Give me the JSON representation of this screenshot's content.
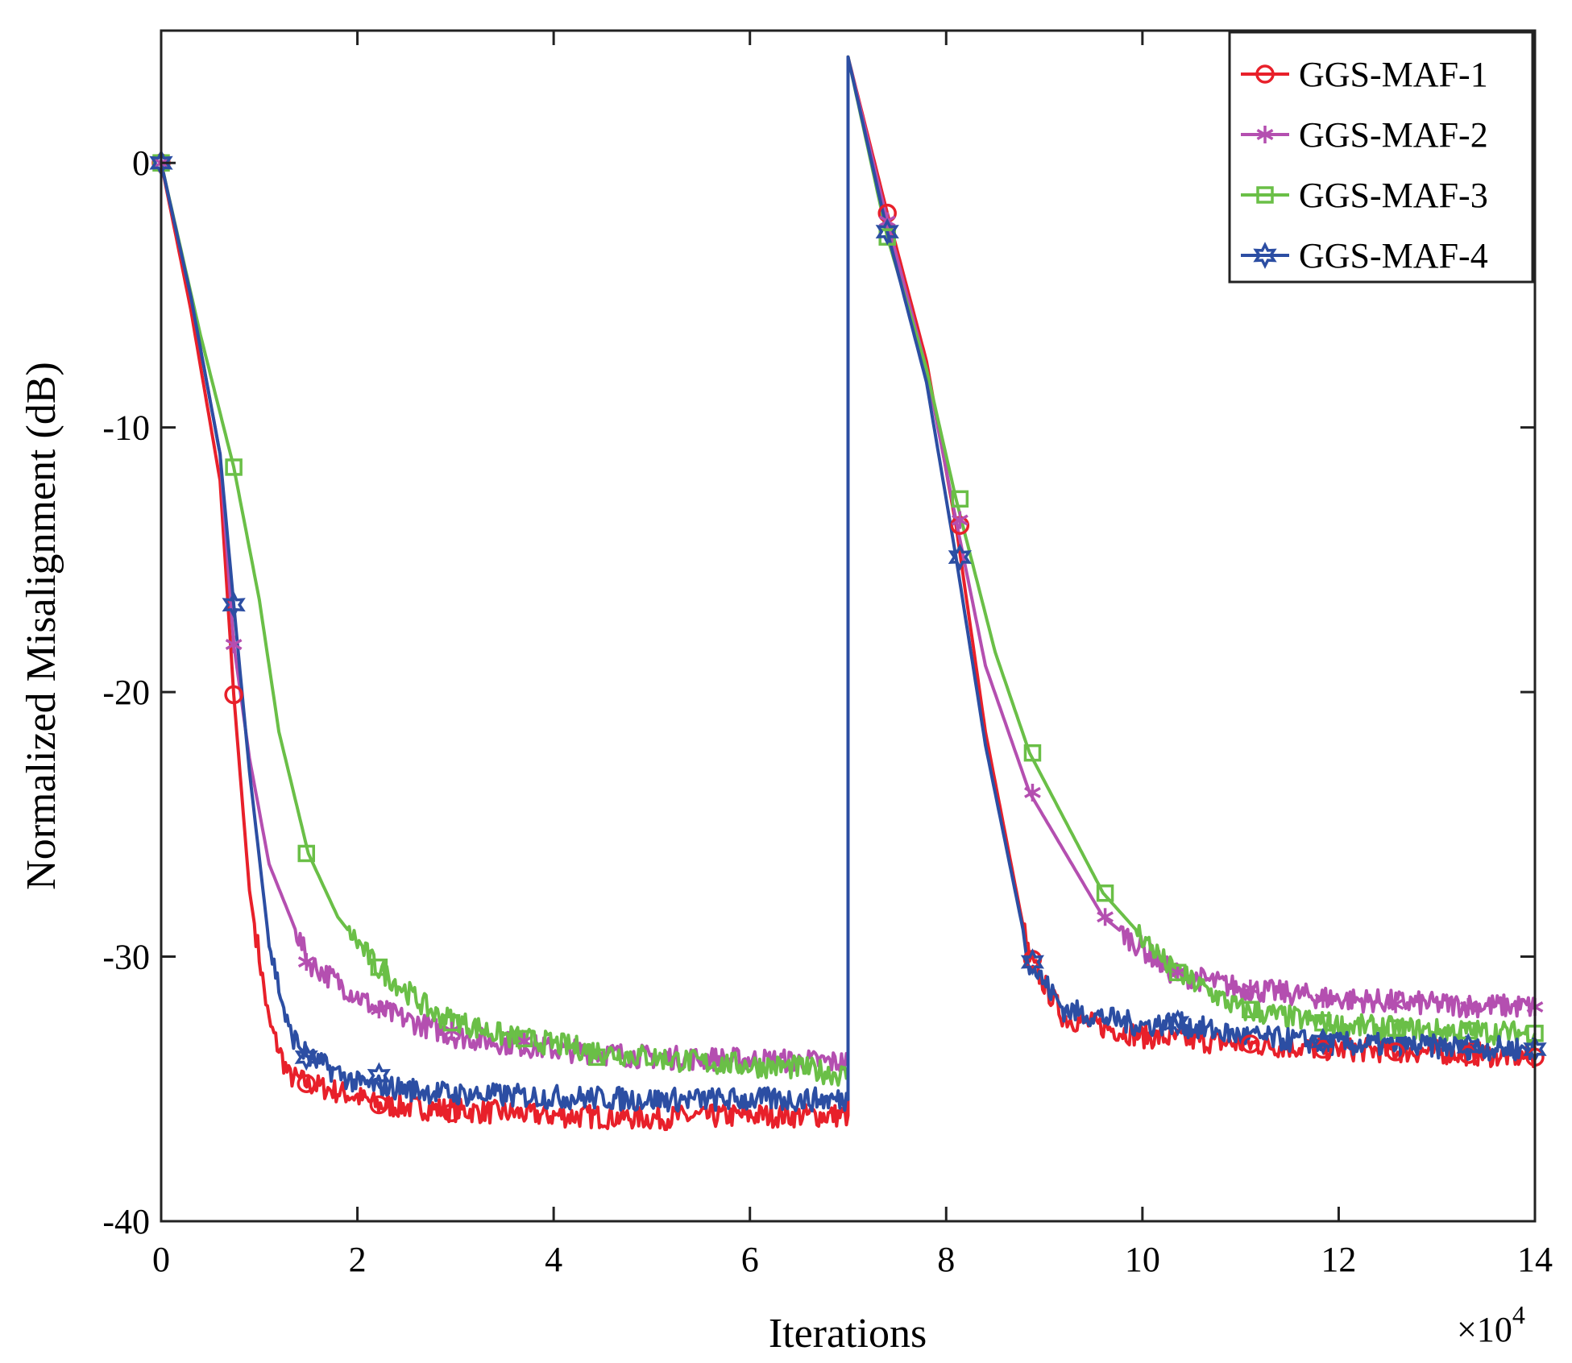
{
  "chart_data": {
    "type": "line",
    "xlabel": "Iterations",
    "ylabel": "Normalized Misalignment (dB)",
    "x_multiplier": {
      "base": "×10",
      "exponent": "4"
    },
    "xlim": [
      0,
      14
    ],
    "ylim": [
      -40,
      5
    ],
    "x_ticks": [
      0,
      2,
      4,
      6,
      8,
      10,
      12,
      14
    ],
    "y_ticks": [
      0,
      -10,
      -20,
      -30,
      -40
    ],
    "x_tick_labels": [
      "0",
      "2",
      "4",
      "6",
      "8",
      "10",
      "12",
      "14"
    ],
    "y_tick_labels": [
      "0",
      "-10",
      "-20",
      "-30",
      "-40"
    ],
    "grid": false,
    "legend_position": "top-right",
    "legend": [
      "GGS-MAF-1",
      "GGS-MAF-2",
      "GGS-MAF-3",
      "GGS-MAF-4"
    ],
    "series": [
      {
        "name": "GGS-MAF-1",
        "color": "#e8202a",
        "marker": "circle",
        "x": [
          0,
          0.3,
          0.6,
          0.74,
          0.9,
          1.1,
          1.3,
          1.5,
          2.0,
          2.2,
          3.0,
          4.0,
          5.0,
          6.0,
          7.0,
          7.0,
          7.4,
          7.8,
          8.1,
          8.4,
          8.85,
          9.2,
          10.0,
          11.0,
          12.0,
          13.0,
          14.0
        ],
        "y": [
          0,
          -5.5,
          -12,
          -20.1,
          -27.5,
          -32.5,
          -34.5,
          -34.8,
          -35.3,
          -35.6,
          -35.8,
          -36.0,
          -36.1,
          -36.0,
          -36.0,
          4.0,
          -1.9,
          -7.5,
          -13.7,
          -21.5,
          -30.1,
          -32.3,
          -33.0,
          -33.3,
          -33.5,
          -33.6,
          -33.8
        ]
      },
      {
        "name": "GGS-MAF-2",
        "color": "#b44fb0",
        "marker": "asterisk",
        "x": [
          0,
          0.3,
          0.6,
          0.74,
          0.9,
          1.1,
          1.5,
          2.2,
          3.0,
          4.0,
          5.0,
          6.0,
          7.0,
          7.0,
          7.4,
          7.8,
          8.1,
          8.4,
          8.85,
          9.6,
          10.3,
          11.0,
          12.0,
          13.0,
          14.0
        ],
        "y": [
          0,
          -5,
          -11,
          -18.2,
          -22.5,
          -26.5,
          -30.2,
          -32.0,
          -33.0,
          -33.5,
          -33.8,
          -33.9,
          -34.0,
          4.0,
          -2.2,
          -7.8,
          -13.5,
          -19.0,
          -23.8,
          -28.5,
          -30.6,
          -31.2,
          -31.6,
          -31.8,
          -31.9
        ]
      },
      {
        "name": "GGS-MAF-3",
        "color": "#6abf47",
        "marker": "square",
        "x": [
          0,
          0.4,
          0.74,
          1.0,
          1.2,
          1.5,
          1.8,
          2.2,
          2.8,
          3.5,
          4.5,
          5.5,
          6.5,
          7.0,
          7.0,
          7.4,
          7.8,
          8.1,
          8.5,
          8.85,
          9.6,
          10.3,
          11.0,
          12.0,
          13.0,
          14.0
        ],
        "y": [
          0,
          -6.5,
          -11.5,
          -16.5,
          -21.5,
          -26.1,
          -28.5,
          -30.4,
          -32.2,
          -33.0,
          -33.6,
          -34.0,
          -34.2,
          -34.5,
          4.0,
          -2.8,
          -7.8,
          -12.7,
          -18.5,
          -22.3,
          -27.6,
          -30.5,
          -32.0,
          -32.6,
          -32.8,
          -32.9
        ]
      },
      {
        "name": "GGS-MAF-4",
        "color": "#2c4ea3",
        "marker": "hexagram",
        "x": [
          0,
          0.3,
          0.6,
          0.74,
          0.9,
          1.1,
          1.3,
          1.5,
          2.0,
          3.0,
          4.0,
          5.0,
          6.0,
          7.0,
          7.0,
          7.4,
          7.8,
          8.1,
          8.4,
          8.85,
          9.2,
          10.0,
          10.3,
          11.0,
          12.0,
          13.0,
          14.0
        ],
        "y": [
          0,
          -5,
          -11,
          -16.7,
          -23,
          -29.5,
          -32.8,
          -33.8,
          -34.8,
          -35.2,
          -35.3,
          -35.4,
          -35.4,
          -35.4,
          4.0,
          -2.6,
          -8.3,
          -14.9,
          -22,
          -30.2,
          -32.0,
          -32.6,
          -32.5,
          -33.0,
          -33.3,
          -33.4,
          -33.5
        ]
      }
    ],
    "marker_positions": [
      {
        "series": 0,
        "x": [
          0,
          0.74,
          1.48,
          2.22,
          2.96,
          7.4,
          8.14,
          8.88,
          11.1,
          11.84,
          12.58,
          13.32,
          14.0
        ],
        "y": [
          0,
          -20.1,
          -34.8,
          -35.6,
          -35.9,
          -1.9,
          -13.7,
          -30.1,
          -33.3,
          -33.5,
          -33.6,
          -33.7,
          -33.8
        ]
      },
      {
        "series": 1,
        "x": [
          0,
          0.74,
          1.48,
          2.22,
          2.96,
          3.7,
          7.4,
          8.14,
          8.88,
          9.62,
          10.36,
          11.1,
          11.84,
          12.58,
          13.32,
          14.0
        ],
        "y": [
          0,
          -18.2,
          -30.2,
          -32.0,
          -32.8,
          -33.2,
          -2.2,
          -13.5,
          -23.8,
          -28.5,
          -30.6,
          -31.2,
          -31.6,
          -31.8,
          -31.9,
          -31.9
        ]
      },
      {
        "series": 2,
        "x": [
          0,
          0.74,
          1.48,
          2.22,
          2.96,
          3.7,
          4.44,
          7.4,
          8.14,
          8.88,
          9.62,
          10.36,
          11.1,
          11.84,
          12.58,
          13.32,
          14.0
        ],
        "y": [
          0,
          -11.5,
          -26.1,
          -30.4,
          -32.5,
          -33.1,
          -33.8,
          -2.8,
          -12.7,
          -22.3,
          -27.6,
          -30.6,
          -32.0,
          -32.5,
          -32.7,
          -32.8,
          -32.9
        ]
      },
      {
        "series": 3,
        "x": [
          0,
          0.74,
          1.48,
          2.22,
          7.4,
          8.14,
          8.88,
          10.36,
          11.84,
          13.32,
          14.0
        ],
        "y": [
          0,
          -16.7,
          -33.8,
          -34.5,
          -2.6,
          -14.9,
          -30.2,
          -32.5,
          -33.2,
          -33.4,
          -33.5
        ]
      }
    ]
  }
}
